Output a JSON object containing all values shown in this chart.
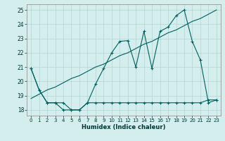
{
  "xlabel": "Humidex (Indice chaleur)",
  "bg_color": "#d4eeee",
  "grid_color": "#b8d8d8",
  "line_color": "#005f5f",
  "xlim": [
    -0.5,
    23.5
  ],
  "ylim": [
    17.6,
    25.4
  ],
  "yticks": [
    18,
    19,
    20,
    21,
    22,
    23,
    24,
    25
  ],
  "xticks": [
    0,
    1,
    2,
    3,
    4,
    5,
    6,
    7,
    8,
    9,
    10,
    11,
    12,
    13,
    14,
    15,
    16,
    17,
    18,
    19,
    20,
    21,
    22,
    23
  ],
  "line1_x": [
    0,
    1,
    2,
    3,
    4,
    5,
    6,
    7,
    8,
    9,
    10,
    11,
    12,
    13,
    14,
    15,
    16,
    17,
    18,
    19,
    20,
    21,
    22,
    23
  ],
  "line1_y": [
    20.9,
    19.4,
    18.5,
    18.5,
    18.5,
    18.0,
    18.0,
    18.5,
    18.5,
    18.5,
    18.5,
    18.5,
    18.5,
    18.5,
    18.5,
    18.5,
    18.5,
    18.5,
    18.5,
    18.5,
    18.5,
    18.5,
    18.7,
    18.7
  ],
  "line2_x": [
    0,
    1,
    2,
    3,
    4,
    5,
    6,
    7,
    8,
    9,
    10,
    11,
    12,
    13,
    14,
    15,
    16,
    17,
    18,
    19,
    20,
    21,
    22,
    23
  ],
  "line2_y": [
    18.8,
    19.1,
    19.4,
    19.6,
    19.9,
    20.2,
    20.4,
    20.7,
    21.0,
    21.2,
    21.5,
    21.8,
    22.0,
    22.3,
    22.6,
    22.8,
    23.1,
    23.4,
    23.6,
    23.9,
    24.2,
    24.4,
    24.7,
    25.0
  ],
  "line3_x": [
    0,
    1,
    2,
    3,
    4,
    5,
    6,
    7,
    8,
    9,
    10,
    11,
    12,
    13,
    14,
    15,
    16,
    17,
    18,
    19,
    20,
    21,
    22,
    23
  ],
  "line3_y": [
    20.9,
    19.4,
    18.5,
    18.5,
    18.0,
    18.0,
    18.0,
    18.5,
    19.8,
    20.9,
    22.0,
    22.8,
    22.85,
    21.0,
    23.5,
    20.9,
    23.5,
    23.8,
    24.6,
    25.0,
    22.8,
    21.5,
    18.5,
    18.7
  ]
}
